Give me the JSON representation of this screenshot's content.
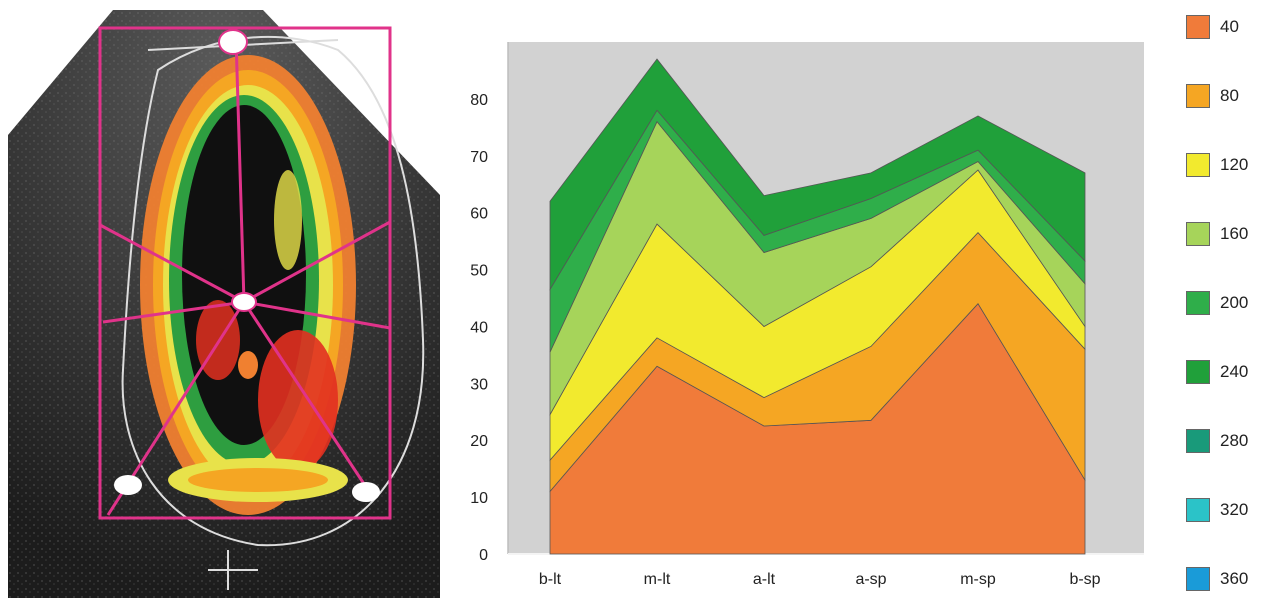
{
  "chart_data": {
    "type": "area",
    "stacked": true,
    "categories": [
      "b-lt",
      "m-lt",
      "a-lt",
      "a-sp",
      "m-sp",
      "b-sp"
    ],
    "ylim": [
      0,
      90
    ],
    "yticks": [
      0,
      10,
      20,
      30,
      40,
      50,
      60,
      70,
      80
    ],
    "grid": false,
    "legend_position": "right",
    "series": [
      {
        "name": "40",
        "color": "#f07b3a",
        "values": [
          11,
          33,
          22.5,
          23.5,
          44,
          13
        ]
      },
      {
        "name": "80",
        "color": "#f5a623",
        "values": [
          5.5,
          5,
          5,
          13,
          12.5,
          23
        ]
      },
      {
        "name": "120",
        "color": "#f2ea2e",
        "values": [
          8,
          20,
          12.5,
          14,
          11,
          4
        ]
      },
      {
        "name": "160",
        "color": "#a6d45a",
        "values": [
          11,
          18,
          13,
          8.5,
          1.5,
          7.5
        ]
      },
      {
        "name": "200",
        "color": "#2fae4a",
        "values": [
          11,
          2,
          3,
          3.5,
          2,
          4
        ]
      },
      {
        "name": "240",
        "color": "#20a03a",
        "values": [
          15.5,
          9,
          7,
          4.5,
          6,
          15.5
        ]
      },
      {
        "name": "280",
        "color": "#199a7a",
        "values": [
          0,
          0,
          0,
          0,
          0,
          0
        ]
      },
      {
        "name": "320",
        "color": "#2bc3c8",
        "values": [
          0,
          0,
          0,
          0,
          0,
          0
        ]
      },
      {
        "name": "360",
        "color": "#1a9bd8",
        "values": [
          0,
          0,
          0,
          0,
          0,
          0
        ]
      }
    ]
  },
  "legend": {
    "items": [
      {
        "label": "40",
        "color": "#f07b3a"
      },
      {
        "label": "80",
        "color": "#f5a623"
      },
      {
        "label": "120",
        "color": "#f2ea2e"
      },
      {
        "label": "160",
        "color": "#a6d45a"
      },
      {
        "label": "200",
        "color": "#2fae4a"
      },
      {
        "label": "240",
        "color": "#20a03a"
      },
      {
        "label": "280",
        "color": "#199a7a"
      },
      {
        "label": "320",
        "color": "#2bc3c8"
      },
      {
        "label": "360",
        "color": "#1a9bd8"
      }
    ]
  }
}
